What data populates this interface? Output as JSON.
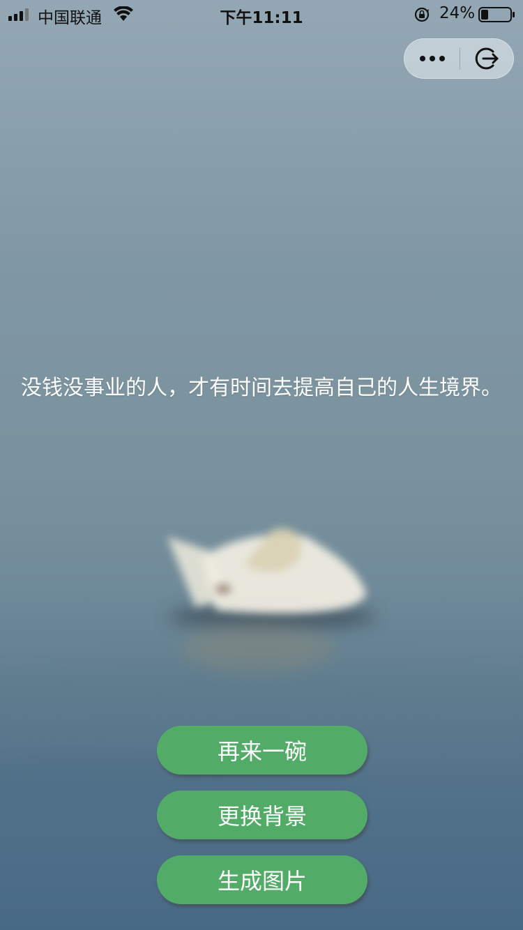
{
  "status_bar": {
    "carrier": "中国联通",
    "time": "下午11:11",
    "battery_percent": "24%",
    "battery_level": 0.24,
    "signal_icon": "cellular-signal-icon",
    "wifi_icon": "wifi-icon",
    "rotation_lock_icon": "rotation-lock-icon",
    "battery_icon": "battery-icon"
  },
  "capsule": {
    "more_icon": "more-dots-icon",
    "exit_icon": "exit-icon"
  },
  "quote": {
    "text": "没钱没事业的人，才有时间去提高自己的人生境界。"
  },
  "actions": {
    "again_label": "再来一碗",
    "change_bg_label": "更换背景",
    "generate_image_label": "生成图片"
  },
  "colors": {
    "button_green": "#52ac67",
    "text_white": "#ffffff"
  }
}
